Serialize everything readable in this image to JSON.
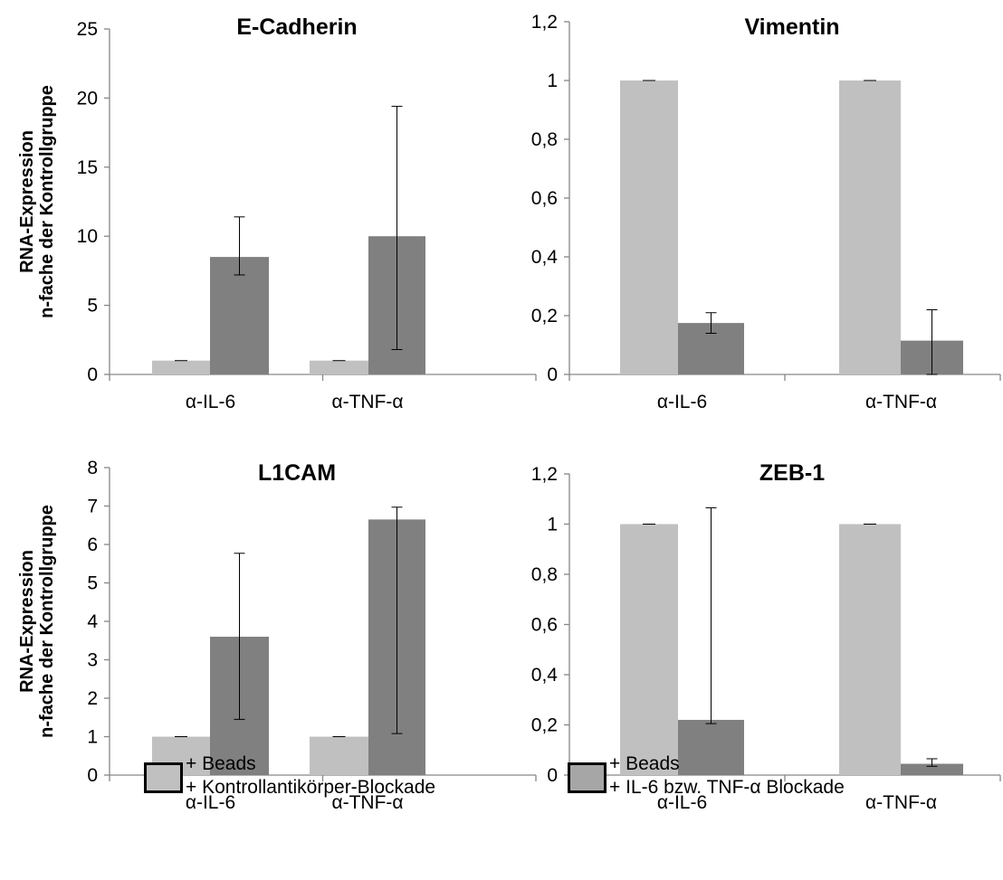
{
  "colors": {
    "control": "#c0c0c0",
    "blockade": "#808080",
    "legend_blockade": "#a6a6a6",
    "axis": "#868686",
    "text": "#000000"
  },
  "ylabel_line1": "RNA-Expression",
  "ylabel_line2": "n-fache der Kontrollgruppe",
  "legend": {
    "control": {
      "line1": "+ Beads",
      "line2": "+ Kontrollantikörper-Blockade"
    },
    "blockade": {
      "line1": "+ Beads",
      "line2": "+ IL-6 bzw. TNF-α  Blockade"
    }
  },
  "chart_data": [
    {
      "type": "bar",
      "title": "E-Cadherin",
      "categories": [
        "α-IL-6",
        "α-TNF-α"
      ],
      "series": [
        {
          "values": [
            1,
            1
          ],
          "errors": [
            0,
            0
          ]
        },
        {
          "values": [
            8.5,
            10.0
          ],
          "err_low": [
            7.2,
            1.8
          ],
          "err_high": [
            11.4,
            19.4
          ]
        }
      ],
      "ylim": [
        0,
        25
      ],
      "yticks": [
        "0",
        "5",
        "10",
        "15",
        "20",
        "25"
      ],
      "ytick_values": [
        0,
        5,
        10,
        15,
        20,
        25
      ],
      "ylabel": "RNA-Expression n-fache der Kontrollgruppe"
    },
    {
      "type": "bar",
      "title": "Vimentin",
      "categories": [
        "α-IL-6",
        "α-TNF-α"
      ],
      "series": [
        {
          "values": [
            1,
            1
          ],
          "errors": [
            0,
            0
          ]
        },
        {
          "values": [
            0.175,
            0.115
          ],
          "err_low": [
            0.14,
            0.0
          ],
          "err_high": [
            0.21,
            0.22
          ]
        }
      ],
      "ylim": [
        0,
        1.2
      ],
      "yticks": [
        "0",
        "0,2",
        "0,4",
        "0,6",
        "0,8",
        "1",
        "1,2"
      ],
      "ytick_values": [
        0,
        0.2,
        0.4,
        0.6,
        0.8,
        1,
        1.2
      ],
      "ylabel": ""
    },
    {
      "type": "bar",
      "title": "L1CAM",
      "categories": [
        "α-IL-6",
        "α-TNF-α"
      ],
      "series": [
        {
          "values": [
            1,
            1
          ],
          "errors": [
            0,
            0
          ]
        },
        {
          "values": [
            3.6,
            6.65
          ],
          "err_low": [
            1.45,
            1.08
          ],
          "err_high": [
            5.77,
            6.97
          ]
        }
      ],
      "ylim": [
        0,
        8
      ],
      "yticks": [
        "0",
        "1",
        "2",
        "3",
        "4",
        "5",
        "6",
        "7",
        "8"
      ],
      "ytick_values": [
        0,
        1,
        2,
        3,
        4,
        5,
        6,
        7,
        8
      ],
      "ylabel": "RNA-Expression n-fache der Kontrollgruppe"
    },
    {
      "type": "bar",
      "title": "ZEB-1",
      "categories": [
        "α-IL-6",
        "α-TNF-α"
      ],
      "series": [
        {
          "values": [
            1,
            1
          ],
          "errors": [
            0,
            0
          ]
        },
        {
          "values": [
            0.22,
            0.045
          ],
          "err_low": [
            0.205,
            0.035
          ],
          "err_high": [
            1.065,
            0.065
          ]
        }
      ],
      "ylim": [
        0,
        1.2
      ],
      "yticks": [
        "0",
        "0,2",
        "0,4",
        "0,6",
        "0,8",
        "1",
        "1,2"
      ],
      "ytick_values": [
        0,
        0.2,
        0.4,
        0.6,
        0.8,
        1,
        1.2
      ],
      "ylabel": ""
    }
  ]
}
